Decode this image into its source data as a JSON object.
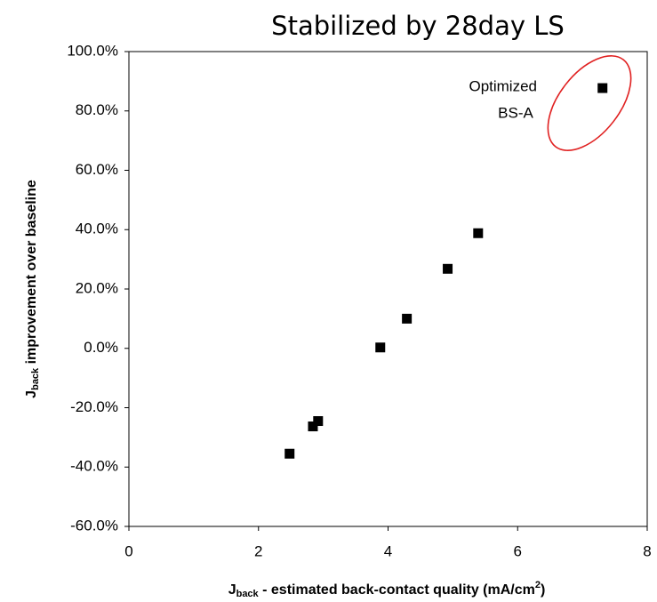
{
  "chart_data": {
    "type": "scatter",
    "title": "Stabilized by 28day LS",
    "xlabel": {
      "main": "J",
      "sub": "back",
      "rest": " - estimated back-contact quality (mA/cm",
      "sup": "2",
      "end": ")"
    },
    "ylabel": {
      "main": "J",
      "sub": "back",
      "rest": " improvement over baseline"
    },
    "x": [
      2.48,
      2.84,
      2.92,
      3.88,
      4.29,
      4.92,
      5.39,
      7.31
    ],
    "series": [
      {
        "name": "Jback improvement",
        "color": "#000000",
        "values": [
          -35.5,
          -26.3,
          -24.5,
          0.3,
          10.0,
          26.8,
          38.8,
          87.7
        ]
      }
    ],
    "xlim": [
      0,
      8
    ],
    "xticks": [
      0,
      2,
      4,
      6,
      8
    ],
    "ylim": [
      -60,
      100
    ],
    "yticks": [
      {
        "value": -60,
        "label": "-60.0%"
      },
      {
        "value": -40,
        "label": "-40.0%"
      },
      {
        "value": -20,
        "label": "-20.0%"
      },
      {
        "value": 0,
        "label": "0.0%"
      },
      {
        "value": 20,
        "label": "20.0%"
      },
      {
        "value": 40,
        "label": "40.0%"
      },
      {
        "value": 60,
        "label": "60.0%"
      },
      {
        "value": 80,
        "label": "80.0%"
      },
      {
        "value": 100,
        "label": "100.0%"
      }
    ],
    "annotation": [
      "Optimized",
      "BS-A"
    ],
    "grid": false
  }
}
